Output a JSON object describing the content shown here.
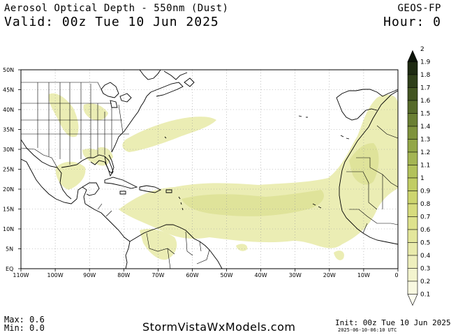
{
  "header": {
    "title": "Aerosol Optical Depth - 550nm (Dust)",
    "valid": "Valid: 00z Tue 10 Jun 2025",
    "model": "GEOS-FP",
    "hour": "Hour: 0"
  },
  "map": {
    "lat_labels": [
      "50N",
      "45N",
      "40N",
      "35N",
      "30N",
      "25N",
      "20N",
      "15N",
      "10N",
      "5N",
      "EQ"
    ],
    "lon_labels": [
      "110W",
      "100W",
      "90W",
      "80W",
      "70W",
      "60W",
      "50W",
      "40W",
      "30W",
      "20W",
      "10W",
      "0"
    ],
    "extent": {
      "lon_min": -110,
      "lon_max": 0,
      "lat_min": 0,
      "lat_max": 50
    }
  },
  "colorbar": {
    "labels": [
      "2",
      "1.9",
      "1.8",
      "1.7",
      "1.6",
      "1.5",
      "1.4",
      "1.3",
      "1.2",
      "1.1",
      "1",
      "0.9",
      "0.8",
      "0.7",
      "0.6",
      "0.5",
      "0.4",
      "0.3",
      "0.2",
      "0.1"
    ],
    "colors": [
      "#0d140a",
      "#1e2a12",
      "#2f3f1a",
      "#435522",
      "#566a2a",
      "#6a7f33",
      "#7f933d",
      "#93a748",
      "#a4b554",
      "#b3c25c",
      "#c1cd64",
      "#cdd56f",
      "#d7dc7e",
      "#dee28d",
      "#e4e79c",
      "#e9ebac",
      "#eeefbd",
      "#f3f4ce",
      "#f8f8e0",
      "#fcfcf0"
    ]
  },
  "stats": {
    "max": "Max: 0.6",
    "min": "Min: 0.0"
  },
  "footer": {
    "credit": "StormVistaWxModels.com",
    "init": "Init: 00z Tue 10 Jun 2025",
    "timestamp": "2025-06-10-06:10 UTC"
  }
}
